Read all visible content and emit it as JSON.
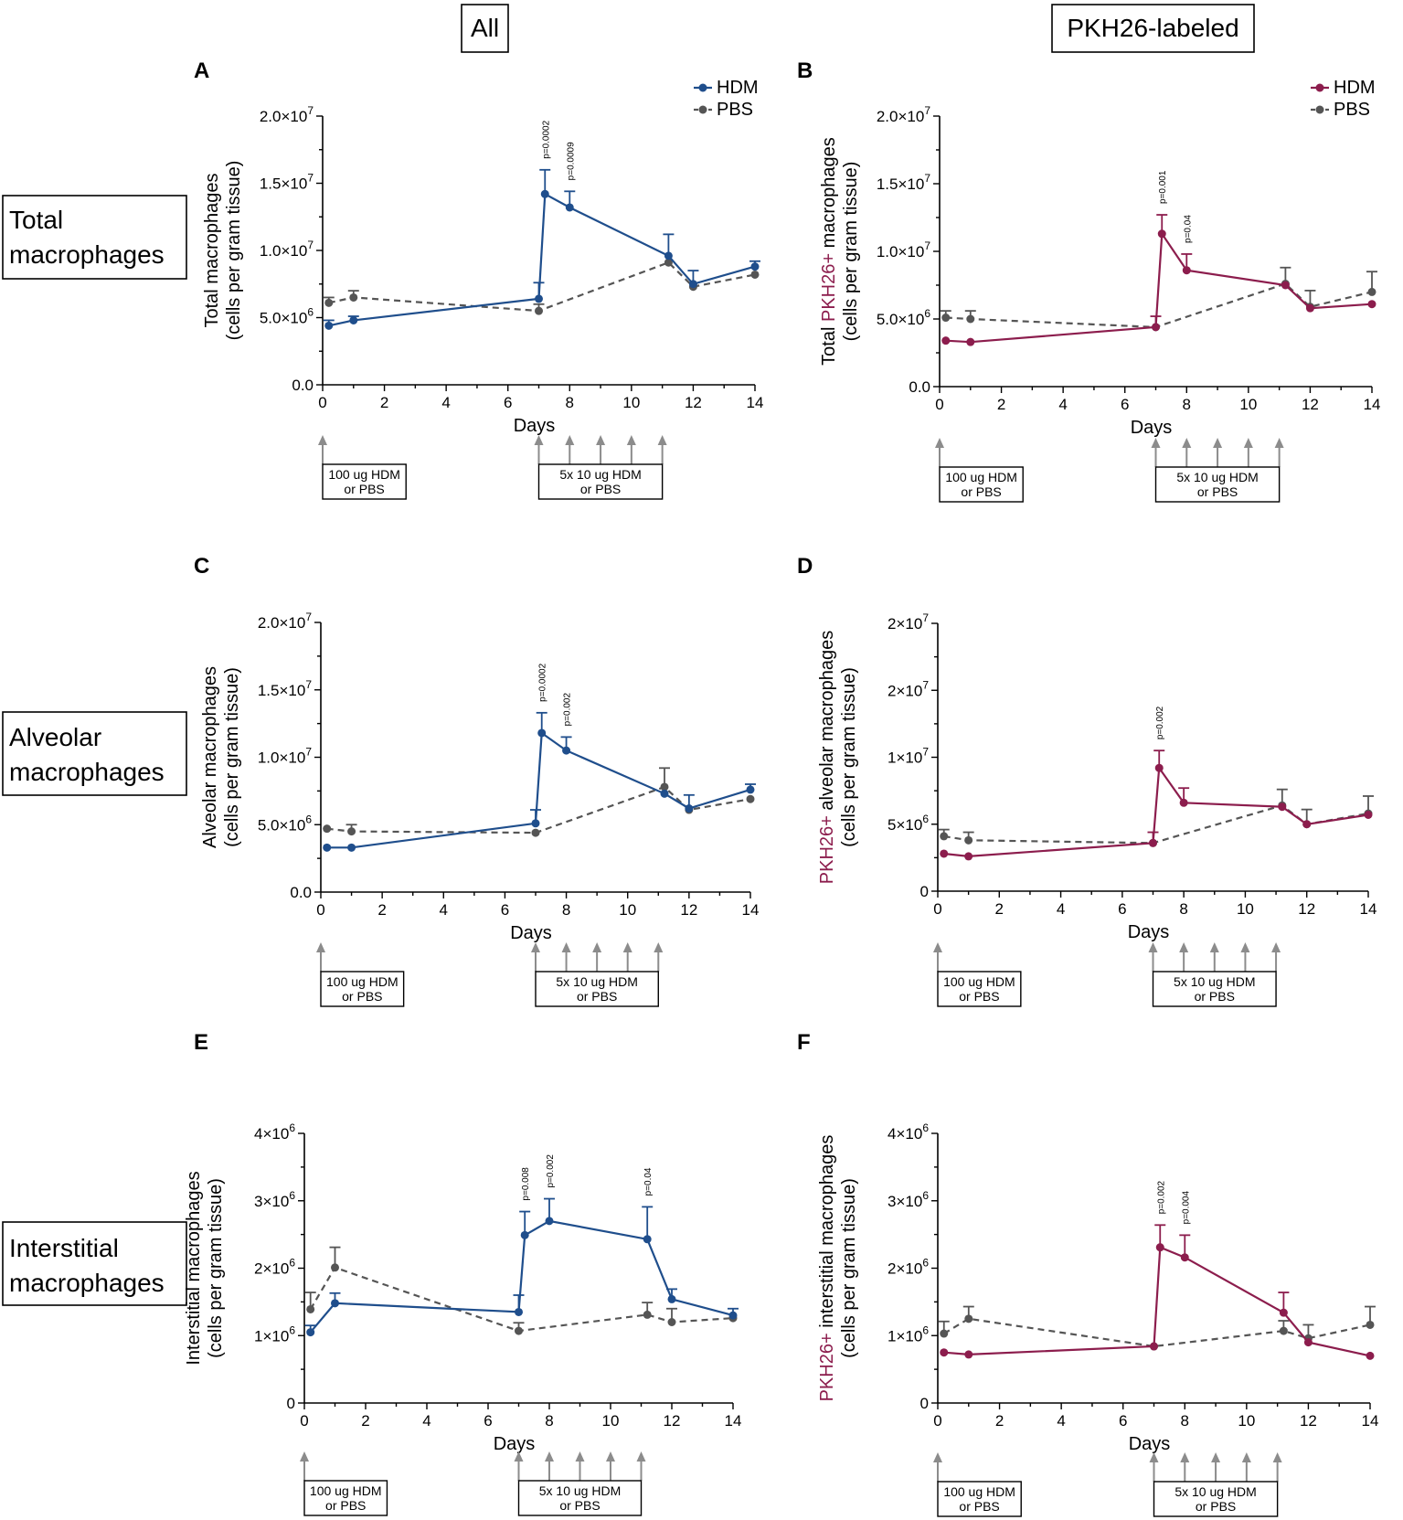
{
  "column_headers": [
    "All",
    "PKH26-labeled"
  ],
  "row_labels": [
    [
      "Total",
      "macrophages"
    ],
    [
      "Alveolar",
      "macrophages"
    ],
    [
      "Interstitial",
      "macrophages"
    ]
  ],
  "treatment_boxes": {
    "first": [
      "100 ug HDM",
      "or PBS"
    ],
    "second": [
      "5x 10 ug HDM",
      "or PBS"
    ]
  },
  "colors": {
    "hdm_all": "#1f4e8c",
    "hdm_pkh": "#8c1d4d",
    "pbs": "#555555",
    "arrow": "#8c8c8c"
  },
  "chart_data": [
    {
      "panel": "A",
      "type": "line",
      "xlabel": "Days",
      "ylabel_lines": [
        [
          "Total macrophages"
        ],
        [
          "(cells per gram tissue)"
        ]
      ],
      "xlim": [
        0,
        14
      ],
      "ylim": [
        0,
        20000000
      ],
      "x_ticks": [
        0,
        2,
        4,
        6,
        8,
        10,
        12,
        14
      ],
      "y_ticks": [
        {
          "v": 0,
          "base": "0.0",
          "exp": ""
        },
        {
          "v": 5000000,
          "base": "5.0×10",
          "exp": "6"
        },
        {
          "v": 10000000,
          "base": "1.0×10",
          "exp": "7"
        },
        {
          "v": 15000000,
          "base": "1.5×10",
          "exp": "7"
        },
        {
          "v": 20000000,
          "base": "2.0×10",
          "exp": "7"
        }
      ],
      "legend": [
        "HDM",
        "PBS"
      ],
      "series": [
        {
          "name": "HDM",
          "x": [
            0.2,
            1,
            7,
            7.2,
            8,
            11.2,
            12,
            14
          ],
          "y": [
            4400000,
            4800000,
            6400000,
            14200000,
            13200000,
            9600000,
            7500000,
            8800000
          ],
          "err": [
            400000,
            300000,
            1200000,
            1800000,
            1200000,
            1600000,
            1000000,
            400000
          ]
        },
        {
          "name": "PBS",
          "x": [
            0.2,
            1,
            7,
            11.2,
            12,
            14
          ],
          "y": [
            6100000,
            6500000,
            5500000,
            9100000,
            7300000,
            8200000
          ],
          "err": [
            400000,
            500000,
            500000,
            0,
            0,
            0
          ]
        }
      ],
      "annotations": [
        {
          "x": 7.2,
          "text": "p=0.0002"
        },
        {
          "x": 8,
          "text": "p=0.0009"
        }
      ]
    },
    {
      "panel": "B",
      "type": "line",
      "xlabel": "Days",
      "ylabel_lines": [
        [
          "Total ",
          "PKH26+",
          " macrophages"
        ],
        [
          "(cells per gram tissue)"
        ]
      ],
      "xlim": [
        0,
        14
      ],
      "ylim": [
        0,
        20000000
      ],
      "x_ticks": [
        0,
        2,
        4,
        6,
        8,
        10,
        12,
        14
      ],
      "y_ticks": [
        {
          "v": 0,
          "base": "0.0",
          "exp": ""
        },
        {
          "v": 5000000,
          "base": "5.0×10",
          "exp": "6"
        },
        {
          "v": 10000000,
          "base": "1.0×10",
          "exp": "7"
        },
        {
          "v": 15000000,
          "base": "1.5×10",
          "exp": "7"
        },
        {
          "v": 20000000,
          "base": "2.0×10",
          "exp": "7"
        }
      ],
      "legend": [
        "HDM",
        "PBS"
      ],
      "series": [
        {
          "name": "HDM",
          "x": [
            0.2,
            1,
            7,
            7.2,
            8,
            11.2,
            12,
            14
          ],
          "y": [
            3400000,
            3300000,
            4400000,
            11300000,
            8600000,
            7500000,
            5800000,
            6100000
          ],
          "err": [
            0,
            0,
            800000,
            1400000,
            1200000,
            0,
            0,
            0
          ]
        },
        {
          "name": "PBS",
          "x": [
            0.2,
            1,
            7,
            11.2,
            12,
            14
          ],
          "y": [
            5100000,
            5000000,
            4400000,
            7600000,
            5900000,
            7000000
          ],
          "err": [
            500000,
            600000,
            0,
            1200000,
            1200000,
            1500000
          ]
        }
      ],
      "annotations": [
        {
          "x": 7.2,
          "text": "p=0.001"
        },
        {
          "x": 8,
          "text": "p=0.04"
        }
      ]
    },
    {
      "panel": "C",
      "type": "line",
      "xlabel": "Days",
      "ylabel_lines": [
        [
          "Alveolar macrophages"
        ],
        [
          "(cells per gram tissue)"
        ]
      ],
      "xlim": [
        0,
        14
      ],
      "ylim": [
        0,
        20000000
      ],
      "x_ticks": [
        0,
        2,
        4,
        6,
        8,
        10,
        12,
        14
      ],
      "y_ticks": [
        {
          "v": 0,
          "base": "0.0",
          "exp": ""
        },
        {
          "v": 5000000,
          "base": "5.0×10",
          "exp": "6"
        },
        {
          "v": 10000000,
          "base": "1.0×10",
          "exp": "7"
        },
        {
          "v": 15000000,
          "base": "1.5×10",
          "exp": "7"
        },
        {
          "v": 20000000,
          "base": "2.0×10",
          "exp": "7"
        }
      ],
      "series": [
        {
          "name": "HDM",
          "x": [
            0.2,
            1,
            7,
            7.2,
            8,
            11.2,
            12,
            14
          ],
          "y": [
            3300000,
            3300000,
            5100000,
            11800000,
            10500000,
            7300000,
            6200000,
            7600000
          ],
          "err": [
            0,
            0,
            1000000,
            1500000,
            1000000,
            0,
            1000000,
            400000
          ]
        },
        {
          "name": "PBS",
          "x": [
            0.2,
            1,
            7,
            11.2,
            12,
            14
          ],
          "y": [
            4700000,
            4500000,
            4400000,
            7800000,
            6100000,
            6900000
          ],
          "err": [
            0,
            500000,
            0,
            1400000,
            0,
            0
          ]
        }
      ],
      "annotations": [
        {
          "x": 7.2,
          "text": "p=0.0002"
        },
        {
          "x": 8,
          "text": "p=0.002"
        }
      ]
    },
    {
      "panel": "D",
      "type": "line",
      "xlabel": "Days",
      "ylabel_lines": [
        [
          "PKH26+",
          " alveolar macrophages"
        ],
        [
          "(cells per gram tissue)"
        ]
      ],
      "xlim": [
        0,
        14
      ],
      "ylim": [
        0,
        20000000
      ],
      "x_ticks": [
        0,
        2,
        4,
        6,
        8,
        10,
        12,
        14
      ],
      "y_ticks": [
        {
          "v": 0,
          "base": "0",
          "exp": ""
        },
        {
          "v": 5000000,
          "base": "5×10",
          "exp": "6"
        },
        {
          "v": 10000000,
          "base": "1×10",
          "exp": "7"
        },
        {
          "v": 15000000,
          "base": "2×10",
          "exp": "7"
        },
        {
          "v": 20000000,
          "base": "2×10",
          "exp": "7"
        }
      ],
      "series": [
        {
          "name": "HDM",
          "x": [
            0.2,
            1,
            7,
            7.2,
            8,
            11.2,
            12,
            14
          ],
          "y": [
            2800000,
            2600000,
            3600000,
            9200000,
            6600000,
            6300000,
            5000000,
            5700000
          ],
          "err": [
            0,
            0,
            800000,
            1300000,
            1100000,
            0,
            0,
            0
          ]
        },
        {
          "name": "PBS",
          "x": [
            0.2,
            1,
            7,
            11.2,
            12,
            14
          ],
          "y": [
            4100000,
            3800000,
            3600000,
            6400000,
            5000000,
            5800000
          ],
          "err": [
            500000,
            600000,
            0,
            1200000,
            1100000,
            1300000
          ]
        }
      ],
      "annotations": [
        {
          "x": 7.2,
          "text": "p=0.002"
        }
      ]
    },
    {
      "panel": "E",
      "type": "line",
      "xlabel": "Days",
      "ylabel_lines": [
        [
          "Interstitial macrophages"
        ],
        [
          "(cells per gram tissue)"
        ]
      ],
      "xlim": [
        0,
        14
      ],
      "ylim": [
        0,
        4000000
      ],
      "x_ticks": [
        0,
        2,
        4,
        6,
        8,
        10,
        12,
        14
      ],
      "y_ticks": [
        {
          "v": 0,
          "base": "0",
          "exp": ""
        },
        {
          "v": 1000000,
          "base": "1×10",
          "exp": "6"
        },
        {
          "v": 2000000,
          "base": "2×10",
          "exp": "6"
        },
        {
          "v": 3000000,
          "base": "3×10",
          "exp": "6"
        },
        {
          "v": 4000000,
          "base": "4×10",
          "exp": "6"
        }
      ],
      "series": [
        {
          "name": "HDM",
          "x": [
            0.2,
            1,
            7,
            7.2,
            8,
            11.2,
            12,
            14
          ],
          "y": [
            1050000,
            1480000,
            1350000,
            2490000,
            2700000,
            2430000,
            1540000,
            1300000
          ],
          "err": [
            100000,
            150000,
            250000,
            350000,
            330000,
            480000,
            150000,
            100000
          ]
        },
        {
          "name": "PBS",
          "x": [
            0.2,
            1,
            7,
            11.2,
            12,
            14
          ],
          "y": [
            1390000,
            2010000,
            1070000,
            1310000,
            1200000,
            1260000
          ],
          "err": [
            250000,
            300000,
            120000,
            180000,
            200000,
            0
          ]
        }
      ],
      "annotations": [
        {
          "x": 7.2,
          "text": "p=0.008"
        },
        {
          "x": 8,
          "text": "p=0.002"
        },
        {
          "x": 11.2,
          "text": "p=0.04"
        }
      ]
    },
    {
      "panel": "F",
      "type": "line",
      "xlabel": "Days",
      "ylabel_lines": [
        [
          "PKH26+",
          " interstitial macrophages"
        ],
        [
          "(cells per gram tissue)"
        ]
      ],
      "xlim": [
        0,
        14
      ],
      "ylim": [
        0,
        4000000
      ],
      "x_ticks": [
        0,
        2,
        4,
        6,
        8,
        10,
        12,
        14
      ],
      "y_ticks": [
        {
          "v": 0,
          "base": "0",
          "exp": ""
        },
        {
          "v": 1000000,
          "base": "1×10",
          "exp": "6"
        },
        {
          "v": 2000000,
          "base": "2×10",
          "exp": "6"
        },
        {
          "v": 3000000,
          "base": "3×10",
          "exp": "6"
        },
        {
          "v": 4000000,
          "base": "4×10",
          "exp": "6"
        }
      ],
      "series": [
        {
          "name": "HDM",
          "x": [
            0.2,
            1,
            7,
            7.2,
            8,
            11.2,
            12,
            14
          ],
          "y": [
            750000,
            720000,
            840000,
            2310000,
            2160000,
            1340000,
            900000,
            700000
          ],
          "err": [
            0,
            0,
            0,
            330000,
            330000,
            300000,
            0,
            0
          ]
        },
        {
          "name": "PBS",
          "x": [
            0.2,
            1,
            7,
            11.2,
            12,
            14
          ],
          "y": [
            1030000,
            1250000,
            840000,
            1070000,
            960000,
            1160000
          ],
          "err": [
            180000,
            180000,
            0,
            150000,
            200000,
            270000
          ]
        }
      ],
      "annotations": [
        {
          "x": 7.2,
          "text": "p=0.002"
        },
        {
          "x": 8,
          "text": "p=0.004"
        }
      ]
    }
  ]
}
